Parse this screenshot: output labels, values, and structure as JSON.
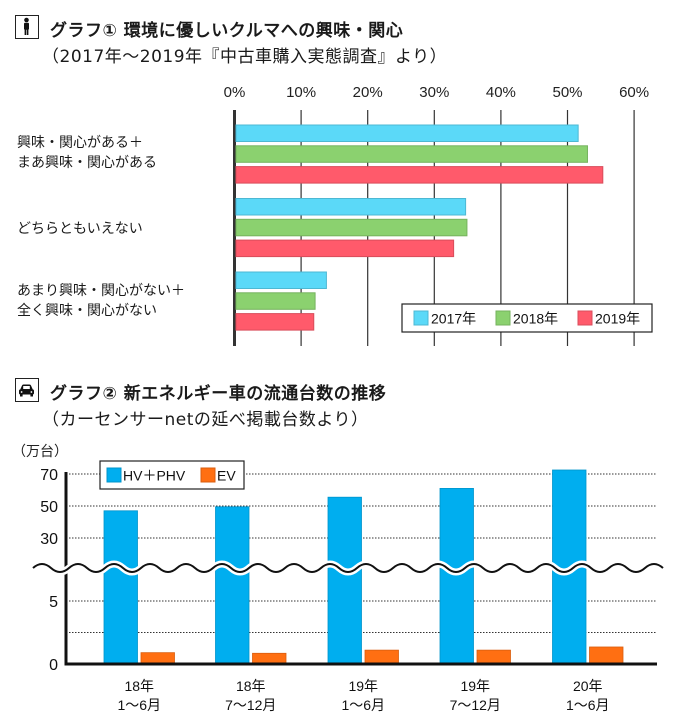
{
  "chart_data": [
    {
      "type": "bar",
      "orientation": "horizontal",
      "title": "グラフ① 環境に優しいクルマへの興味・関心",
      "subtitle": "（2017年～2019年『中古車購入実態調査』より）",
      "icon": "person-icon",
      "categories": [
        [
          "興味・関心がある＋",
          "まあ興味・関心がある"
        ],
        [
          "どちらともいえない"
        ],
        [
          "あまり興味・関心がない＋",
          "全く興味・関心がない"
        ]
      ],
      "series": [
        {
          "name": "2017年",
          "color": "#5bd9f8",
          "values": [
            51.6,
            34.7,
            13.8
          ]
        },
        {
          "name": "2018年",
          "color": "#8bd16f",
          "values": [
            53.0,
            34.9,
            12.1
          ]
        },
        {
          "name": "2019年",
          "color": "#ff5a6b",
          "values": [
            55.3,
            32.9,
            11.9
          ]
        }
      ],
      "xlim": [
        0,
        60
      ],
      "xticks": [
        "0%",
        "10%",
        "20%",
        "30%",
        "40%",
        "50%",
        "60%"
      ],
      "xtick_values": [
        0,
        10,
        20,
        30,
        40,
        50,
        60
      ],
      "xlabel": "",
      "ylabel": "",
      "grid": true,
      "legend_position": "bottom-right"
    },
    {
      "type": "bar",
      "orientation": "vertical",
      "title": "グラフ② 新エネルギー車の流通台数の推移",
      "subtitle": "（カーセンサーnetの延べ掲載台数より）",
      "icon": "car-icon",
      "ylabel": "（万台）",
      "categories": [
        [
          "18年",
          "1～6月"
        ],
        [
          "18年",
          "7～12月"
        ],
        [
          "19年",
          "1～6月"
        ],
        [
          "19年",
          "7～12月"
        ],
        [
          "20年",
          "1～6月"
        ]
      ],
      "series": [
        {
          "name": "HV＋PHV",
          "color": "#00aeef",
          "values": [
            47,
            49.5,
            55.5,
            61,
            72.5
          ]
        },
        {
          "name": "EV",
          "color": "#ff6f12",
          "values": [
            0.9,
            0.85,
            1.1,
            1.1,
            1.35
          ]
        }
      ],
      "axis_break": true,
      "lower_range": [
        0,
        5
      ],
      "upper_range": [
        30,
        70
      ],
      "yticks_lower": [
        "0",
        "5"
      ],
      "ytick_values_lower": [
        0,
        5
      ],
      "lower_gridlines": [
        2.5,
        5
      ],
      "yticks_upper": [
        "30",
        "50",
        "70"
      ],
      "ytick_values_upper": [
        30,
        50,
        70
      ],
      "grid": true,
      "legend_position": "top-left"
    }
  ]
}
